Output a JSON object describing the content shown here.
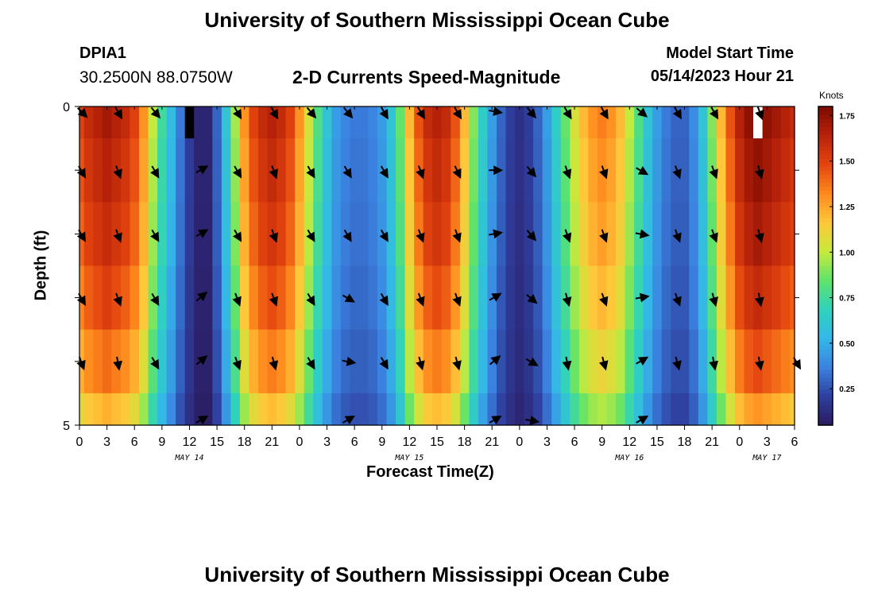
{
  "header": {
    "title": "University of Southern Mississippi Ocean Cube",
    "station_id": "DPIA1",
    "coordinates": "30.2500N  88.0750W",
    "subtitle": "2-D Currents Speed-Magnitude",
    "model_start_label": "Model Start Time",
    "model_start_value": "05/14/2023 Hour 21"
  },
  "footer": {
    "title": "University of Southern Mississippi Ocean Cube"
  },
  "colors": {
    "text": "#000000",
    "colormap": [
      "#2b1a5e",
      "#2e3f9e",
      "#3b82e0",
      "#34b7e8",
      "#2fd2bd",
      "#5fe36b",
      "#c6ea3c",
      "#ffc73a",
      "#ff8a1e",
      "#e4450f",
      "#b8230a",
      "#7e0a00"
    ]
  },
  "chart_data": {
    "type": "heatmap",
    "title": "2-D Currents Speed-Magnitude",
    "xlabel": "Forecast Time(Z)",
    "ylabel": "Depth (ft)",
    "xlim": [
      0,
      78
    ],
    "ylim": [
      5,
      0
    ],
    "x_ticks": [
      {
        "t": 0,
        "label": "0"
      },
      {
        "t": 3,
        "label": "3"
      },
      {
        "t": 6,
        "label": "6"
      },
      {
        "t": 9,
        "label": "9"
      },
      {
        "t": 12,
        "label": "12"
      },
      {
        "t": 15,
        "label": "15"
      },
      {
        "t": 18,
        "label": "18"
      },
      {
        "t": 21,
        "label": "21"
      },
      {
        "t": 24,
        "label": "0"
      },
      {
        "t": 27,
        "label": "3"
      },
      {
        "t": 30,
        "label": "6"
      },
      {
        "t": 33,
        "label": "9"
      },
      {
        "t": 36,
        "label": "12"
      },
      {
        "t": 39,
        "label": "15"
      },
      {
        "t": 42,
        "label": "18"
      },
      {
        "t": 45,
        "label": "21"
      },
      {
        "t": 48,
        "label": "0"
      },
      {
        "t": 51,
        "label": "3"
      },
      {
        "t": 54,
        "label": "6"
      },
      {
        "t": 57,
        "label": "9"
      },
      {
        "t": 60,
        "label": "12"
      },
      {
        "t": 63,
        "label": "15"
      },
      {
        "t": 66,
        "label": "18"
      },
      {
        "t": 69,
        "label": "21"
      },
      {
        "t": 72,
        "label": "0"
      },
      {
        "t": 75,
        "label": "3"
      },
      {
        "t": 78,
        "label": "6"
      }
    ],
    "y_ticks": [
      {
        "depth": 0,
        "label": "0"
      },
      {
        "depth": 5,
        "label": "5"
      }
    ],
    "date_labels": [
      {
        "t": 12,
        "label": "MAY 14"
      },
      {
        "t": 36,
        "label": "MAY 15"
      },
      {
        "t": 60,
        "label": "MAY 16"
      },
      {
        "t": 75,
        "label": "MAY 17"
      }
    ],
    "colorbar": {
      "units": "Knots",
      "range": [
        0.05,
        1.8
      ],
      "ticks": [
        {
          "value": 0.25,
          "label": "0.25"
        },
        {
          "value": 0.5,
          "label": "0.50"
        },
        {
          "value": 0.75,
          "label": "0.75"
        },
        {
          "value": 1.0,
          "label": "1.00"
        },
        {
          "value": 1.25,
          "label": "1.25"
        },
        {
          "value": 1.5,
          "label": "1.50"
        },
        {
          "value": 1.75,
          "label": "1.75"
        }
      ]
    },
    "depth_bands": [
      0,
      1,
      2,
      3,
      4,
      5
    ],
    "time_step_hours": 1,
    "surface_speed_knots": [
      1.5,
      1.6,
      1.65,
      1.7,
      1.65,
      1.6,
      1.5,
      1.3,
      1.0,
      0.75,
      0.55,
      0.35,
      0.2,
      0.1,
      0.1,
      0.3,
      0.6,
      0.95,
      1.3,
      1.5,
      1.6,
      1.65,
      1.6,
      1.5,
      1.3,
      1.05,
      0.8,
      0.6,
      0.45,
      0.38,
      0.35,
      0.35,
      0.38,
      0.45,
      0.6,
      0.85,
      1.2,
      1.45,
      1.6,
      1.65,
      1.6,
      1.45,
      1.2,
      0.9,
      0.65,
      0.45,
      0.3,
      0.2,
      0.15,
      0.2,
      0.3,
      0.45,
      0.65,
      0.85,
      1.05,
      1.2,
      1.3,
      1.35,
      1.3,
      1.2,
      1.0,
      0.8,
      0.6,
      0.45,
      0.35,
      0.3,
      0.3,
      0.4,
      0.6,
      0.9,
      1.2,
      1.45,
      1.65,
      1.75,
      1.8,
      1.75,
      1.7,
      1.65,
      1.6
    ],
    "depth_factors": [
      1.0,
      0.97,
      0.94,
      0.89,
      0.82,
      0.72
    ],
    "missing_cells": [
      {
        "t": 12,
        "band": 0,
        "value": "black"
      },
      {
        "t": 74,
        "band": 0,
        "value": "white"
      }
    ],
    "vectors": [
      {
        "t": 0,
        "dirs": [
          135,
          150,
          150,
          150,
          160,
          null
        ]
      },
      {
        "t": 4,
        "dirs": [
          150,
          160,
          160,
          160,
          170,
          null
        ]
      },
      {
        "t": 8,
        "dirs": [
          140,
          150,
          150,
          150,
          150,
          null
        ]
      },
      {
        "t": 11,
        "dirs": [
          null,
          null,
          null,
          null,
          null,
          null
        ]
      },
      {
        "t": 13,
        "dirs": [
          null,
          60,
          60,
          50,
          50,
          60
        ]
      },
      {
        "t": 17,
        "dirs": [
          150,
          150,
          150,
          160,
          160,
          null
        ]
      },
      {
        "t": 21,
        "dirs": [
          150,
          160,
          160,
          160,
          165,
          null
        ]
      },
      {
        "t": 25,
        "dirs": [
          140,
          150,
          150,
          150,
          150,
          null
        ]
      },
      {
        "t": 29,
        "dirs": [
          140,
          150,
          150,
          120,
          100,
          60
        ]
      },
      {
        "t": 33,
        "dirs": [
          150,
          150,
          150,
          150,
          150,
          null
        ]
      },
      {
        "t": 37,
        "dirs": [
          150,
          160,
          160,
          160,
          165,
          null
        ]
      },
      {
        "t": 41,
        "dirs": [
          150,
          155,
          160,
          160,
          165,
          null
        ]
      },
      {
        "t": 45,
        "dirs": [
          100,
          90,
          80,
          60,
          50,
          60
        ]
      },
      {
        "t": 49,
        "dirs": [
          140,
          140,
          140,
          130,
          120,
          100
        ]
      },
      {
        "t": 53,
        "dirs": [
          150,
          160,
          160,
          165,
          170,
          null
        ]
      },
      {
        "t": 57,
        "dirs": [
          150,
          160,
          160,
          160,
          165,
          null
        ]
      },
      {
        "t": 61,
        "dirs": [
          130,
          120,
          100,
          80,
          60,
          60
        ]
      },
      {
        "t": 65,
        "dirs": [
          150,
          160,
          160,
          160,
          165,
          null
        ]
      },
      {
        "t": 69,
        "dirs": [
          150,
          160,
          160,
          165,
          170,
          null
        ]
      },
      {
        "t": 74,
        "dirs": [
          160,
          165,
          165,
          170,
          170,
          null
        ]
      },
      {
        "t": 78,
        "dirs": [
          null,
          null,
          null,
          null,
          150,
          null
        ]
      }
    ]
  }
}
